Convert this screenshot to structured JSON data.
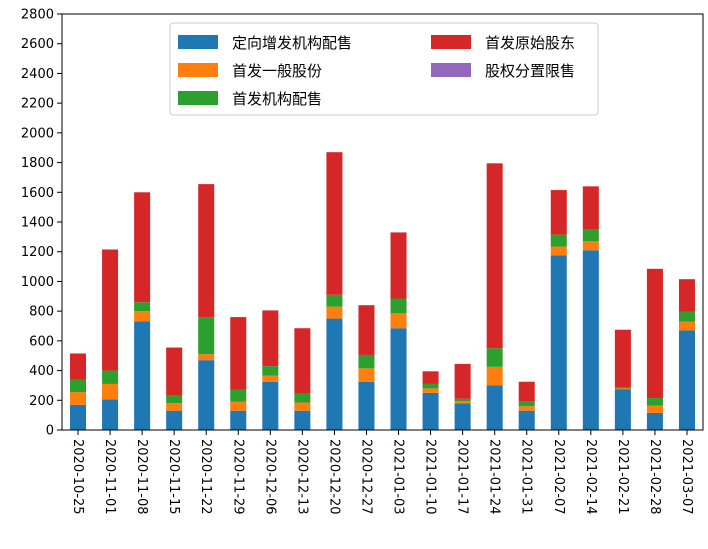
{
  "chart_data": {
    "type": "bar",
    "stacked": true,
    "categories": [
      "2020-10-25",
      "2020-11-01",
      "2020-11-08",
      "2020-11-15",
      "2020-11-22",
      "2020-11-29",
      "2020-12-06",
      "2020-12-13",
      "2020-12-20",
      "2020-12-27",
      "2021-01-03",
      "2021-01-10",
      "2021-01-17",
      "2021-01-24",
      "2021-01-31",
      "2021-02-07",
      "2021-02-14",
      "2021-02-21",
      "2021-02-28",
      "2021-03-07"
    ],
    "series": [
      {
        "name": "定向增发机构配售",
        "color": "#1f77b4",
        "values": [
          170,
          205,
          730,
          130,
          470,
          130,
          325,
          130,
          750,
          325,
          685,
          250,
          180,
          300,
          130,
          1175,
          1210,
          275,
          115,
          670
        ]
      },
      {
        "name": "首发一般股份",
        "color": "#ff7f0e",
        "values": [
          85,
          105,
          70,
          50,
          40,
          60,
          40,
          55,
          80,
          90,
          100,
          30,
          15,
          125,
          30,
          60,
          60,
          5,
          50,
          60
        ]
      },
      {
        "name": "首发机构配售",
        "color": "#2ca02c",
        "values": [
          85,
          90,
          60,
          50,
          250,
          80,
          65,
          60,
          80,
          90,
          100,
          30,
          15,
          125,
          30,
          80,
          80,
          5,
          50,
          65
        ]
      },
      {
        "name": "首发原始股东",
        "color": "#d62728",
        "values": [
          175,
          815,
          740,
          325,
          895,
          490,
          375,
          440,
          960,
          335,
          445,
          85,
          235,
          1245,
          135,
          300,
          290,
          390,
          870,
          220
        ]
      },
      {
        "name": "股权分置限售",
        "color": "#9467bd",
        "values": [
          0,
          0,
          0,
          0,
          0,
          0,
          0,
          0,
          0,
          0,
          0,
          0,
          0,
          0,
          0,
          0,
          0,
          0,
          0,
          0
        ]
      }
    ],
    "ylim": [
      0,
      2800
    ],
    "yticks": [
      0,
      200,
      400,
      600,
      800,
      1000,
      1200,
      1400,
      1600,
      1800,
      2000,
      2200,
      2400,
      2600,
      2800
    ],
    "legend": {
      "location": "top-center",
      "columns": 2
    },
    "grid": false
  }
}
